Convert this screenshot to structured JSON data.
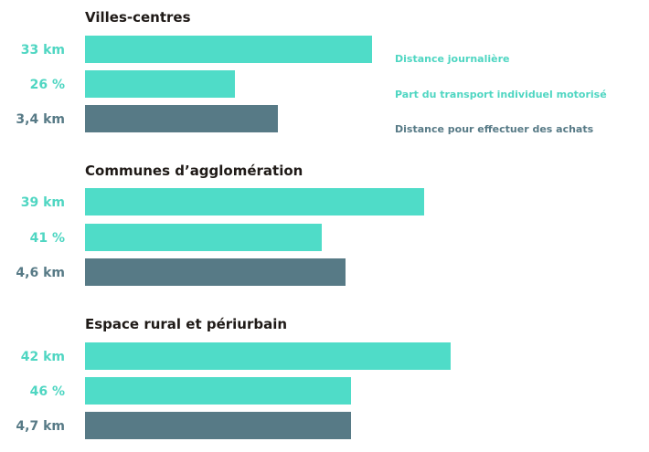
{
  "chart_data": {
    "type": "bar",
    "orientation": "horizontal",
    "grid": false,
    "legend_position": "right",
    "series": [
      {
        "name": "Distance journalière",
        "color": "#4fdcc8"
      },
      {
        "name": "Part du transport individuel motorisé",
        "color": "#4fdcc8"
      },
      {
        "name": "Distance pour effectuer des achats",
        "color": "#577a86"
      }
    ],
    "groups": [
      {
        "title": "Villes-centres",
        "bars": [
          {
            "label": "33 km",
            "value": 33,
            "series": 0
          },
          {
            "label": "26 %",
            "value": 26,
            "series": 1
          },
          {
            "label": "3,4 km",
            "value": 3.4,
            "series": 2
          }
        ]
      },
      {
        "title": "Communes d’agglomération",
        "bars": [
          {
            "label": "39 km",
            "value": 39,
            "series": 0
          },
          {
            "label": "41 %",
            "value": 41,
            "series": 1
          },
          {
            "label": "4,6 km",
            "value": 4.6,
            "series": 2
          }
        ]
      },
      {
        "title": "Espace rural et périurbain",
        "bars": [
          {
            "label": "42 km",
            "value": 42,
            "series": 0
          },
          {
            "label": "46 %",
            "value": 46,
            "series": 1
          },
          {
            "label": "4,7 km",
            "value": 4.7,
            "series": 2
          }
        ]
      }
    ]
  }
}
